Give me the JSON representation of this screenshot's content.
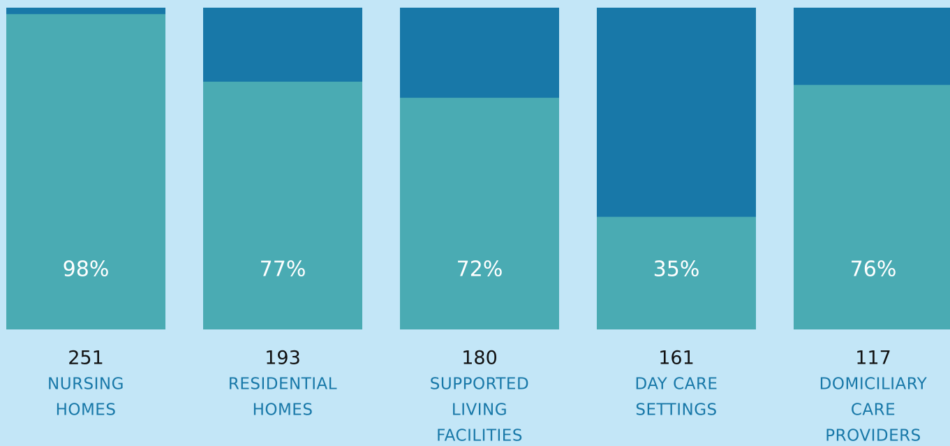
{
  "chart_data": {
    "type": "bar",
    "categories": [
      [
        "NURSING",
        "HOMES"
      ],
      [
        "RESIDENTIAL",
        "HOMES"
      ],
      [
        "SUPPORTED",
        "LIVING",
        "FACILITIES"
      ],
      [
        "DAY CARE",
        "SETTINGS"
      ],
      [
        "DOMICILIARY",
        "CARE",
        "PROVIDERS"
      ]
    ],
    "counts": [
      251,
      193,
      180,
      161,
      117
    ],
    "values": [
      98,
      77,
      72,
      35,
      76
    ],
    "value_labels": [
      "98%",
      "77%",
      "72%",
      "35%",
      "76%"
    ],
    "color": "#4aabb3",
    "track_color": "#1878a8",
    "ylim": [
      0,
      100
    ]
  }
}
